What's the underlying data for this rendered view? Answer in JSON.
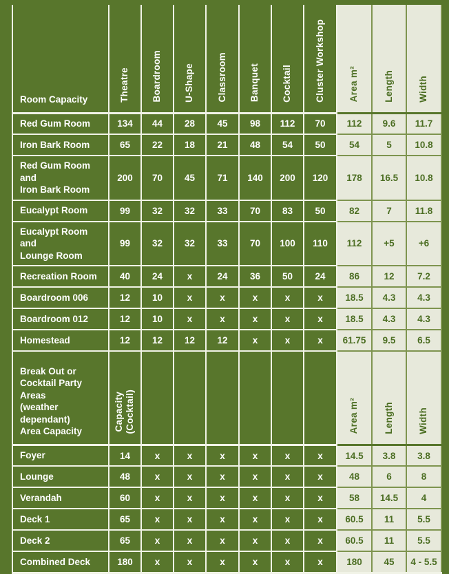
{
  "theme": {
    "background_green": "#58762c",
    "light_cell_background": "#e7e9db",
    "white_text": "#ffffff",
    "green_text": "#4c6e23",
    "grid_line_white": "#f1f3e7",
    "grid_line_olive": "#7e944f"
  },
  "section1": {
    "header": {
      "corner": "Room Capacity",
      "columns": [
        "Theatre",
        "Boardroom",
        "U-Shape",
        "Classroom",
        "Banquet",
        "Cocktail",
        "Cluster Workshop"
      ],
      "dims": [
        "Area m²",
        "Length",
        "Width"
      ]
    },
    "rows": [
      {
        "name": [
          "Red Gum Room"
        ],
        "capacities": [
          "134",
          "44",
          "28",
          "45",
          "98",
          "112",
          "70"
        ],
        "dims": [
          "112",
          "9.6",
          "11.7"
        ]
      },
      {
        "name": [
          "Iron Bark Room"
        ],
        "capacities": [
          "65",
          "22",
          "18",
          "21",
          "48",
          "54",
          "50"
        ],
        "dims": [
          "54",
          "5",
          "10.8"
        ]
      },
      {
        "name": [
          "Red Gum Room and",
          "Iron Bark Room"
        ],
        "capacities": [
          "200",
          "70",
          "45",
          "71",
          "140",
          "200",
          "120"
        ],
        "dims": [
          "178",
          "16.5",
          "10.8"
        ]
      },
      {
        "name": [
          "Eucalypt Room"
        ],
        "capacities": [
          "99",
          "32",
          "32",
          "33",
          "70",
          "83",
          "50"
        ],
        "dims": [
          "82",
          "7",
          "11.8"
        ]
      },
      {
        "name": [
          "Eucalypt Room and",
          "Lounge Room"
        ],
        "capacities": [
          "99",
          "32",
          "32",
          "33",
          "70",
          "100",
          "110"
        ],
        "dims": [
          "112",
          "+5",
          "+6"
        ]
      },
      {
        "name": [
          "Recreation Room"
        ],
        "capacities": [
          "40",
          "24",
          "x",
          "24",
          "36",
          "50",
          "24"
        ],
        "dims": [
          "86",
          "12",
          "7.2"
        ]
      },
      {
        "name": [
          "Boardroom 006"
        ],
        "capacities": [
          "12",
          "10",
          "x",
          "x",
          "x",
          "x",
          "x"
        ],
        "dims": [
          "18.5",
          "4.3",
          "4.3"
        ]
      },
      {
        "name": [
          "Boardroom 012"
        ],
        "capacities": [
          "12",
          "10",
          "x",
          "x",
          "x",
          "x",
          "x"
        ],
        "dims": [
          "18.5",
          "4.3",
          "4.3"
        ]
      },
      {
        "name": [
          "Homestead"
        ],
        "capacities": [
          "12",
          "12",
          "12",
          "12",
          "x",
          "x",
          "x"
        ],
        "dims": [
          "61.75",
          "9.5",
          "6.5"
        ]
      }
    ]
  },
  "section2": {
    "header": {
      "corner": [
        "Break Out or",
        "Cocktail Party Areas",
        "(weather dependant)",
        "Area Capacity"
      ],
      "columns": [
        [
          "Capacity",
          "(Cocktail)"
        ],
        "",
        "",
        "",
        "",
        "",
        ""
      ],
      "dims": [
        "Area m²",
        "Length",
        "Width"
      ]
    },
    "rows": [
      {
        "name": [
          "Foyer"
        ],
        "capacities": [
          "14",
          "x",
          "x",
          "x",
          "x",
          "x",
          "x"
        ],
        "dims": [
          "14.5",
          "3.8",
          "3.8"
        ]
      },
      {
        "name": [
          "Lounge"
        ],
        "capacities": [
          "48",
          "x",
          "x",
          "x",
          "x",
          "x",
          "x"
        ],
        "dims": [
          "48",
          "6",
          "8"
        ]
      },
      {
        "name": [
          "Verandah"
        ],
        "capacities": [
          "60",
          "x",
          "x",
          "x",
          "x",
          "x",
          "x"
        ],
        "dims": [
          "58",
          "14.5",
          "4"
        ]
      },
      {
        "name": [
          "Deck 1"
        ],
        "capacities": [
          "65",
          "x",
          "x",
          "x",
          "x",
          "x",
          "x"
        ],
        "dims": [
          "60.5",
          "11",
          "5.5"
        ]
      },
      {
        "name": [
          "Deck 2"
        ],
        "capacities": [
          "65",
          "x",
          "x",
          "x",
          "x",
          "x",
          "x"
        ],
        "dims": [
          "60.5",
          "11",
          "5.5"
        ]
      },
      {
        "name": [
          "Combined Deck"
        ],
        "capacities": [
          "180",
          "x",
          "x",
          "x",
          "x",
          "x",
          "x"
        ],
        "dims": [
          "180",
          "45",
          "4 - 5.5"
        ]
      }
    ]
  }
}
